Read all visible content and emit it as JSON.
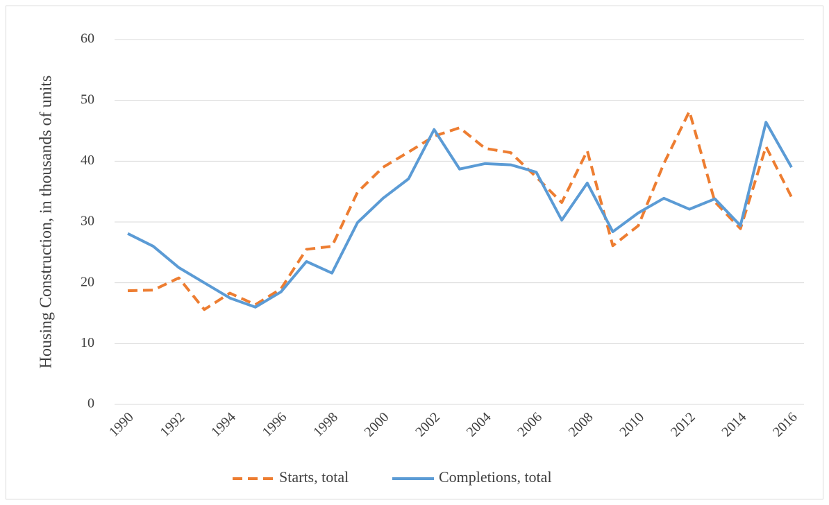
{
  "chart_data": {
    "type": "line",
    "y_label": "Housing Construction, in thousands of units",
    "x": [
      1990,
      1991,
      1992,
      1993,
      1994,
      1995,
      1996,
      1997,
      1998,
      1999,
      2000,
      2001,
      2002,
      2003,
      2004,
      2005,
      2006,
      2007,
      2008,
      2009,
      2010,
      2011,
      2012,
      2013,
      2014,
      2015,
      2016
    ],
    "series": [
      {
        "name": "Starts, total",
        "color": "#ed7d31",
        "dashed": true,
        "values": [
          18.7,
          18.8,
          20.8,
          15.6,
          18.3,
          16.4,
          19.0,
          25.5,
          26.0,
          34.9,
          39.0,
          41.5,
          44.1,
          45.5,
          42.1,
          41.4,
          37.4,
          33.2,
          41.7,
          26.1,
          29.4,
          39.6,
          48.2,
          33.3,
          28.9,
          42.4,
          34.1
        ]
      },
      {
        "name": "Completions, total",
        "color": "#5b9bd5",
        "dashed": false,
        "values": [
          28.1,
          26.0,
          22.5,
          20.0,
          17.5,
          16.0,
          18.5,
          23.5,
          21.6,
          29.9,
          33.9,
          37.1,
          45.2,
          38.7,
          39.6,
          39.4,
          38.2,
          30.3,
          36.4,
          28.4,
          31.5,
          33.9,
          32.1,
          33.8,
          29.4,
          46.4,
          39.0
        ]
      }
    ],
    "xlim": [
      1990,
      2016
    ],
    "xticks": [
      1990,
      1992,
      1994,
      1996,
      1998,
      2000,
      2002,
      2004,
      2006,
      2008,
      2010,
      2012,
      2014,
      2016
    ],
    "ylim": [
      0,
      60
    ],
    "yticks": [
      0,
      10,
      20,
      30,
      40,
      50,
      60
    ],
    "grid": true,
    "legend": "bottom"
  }
}
